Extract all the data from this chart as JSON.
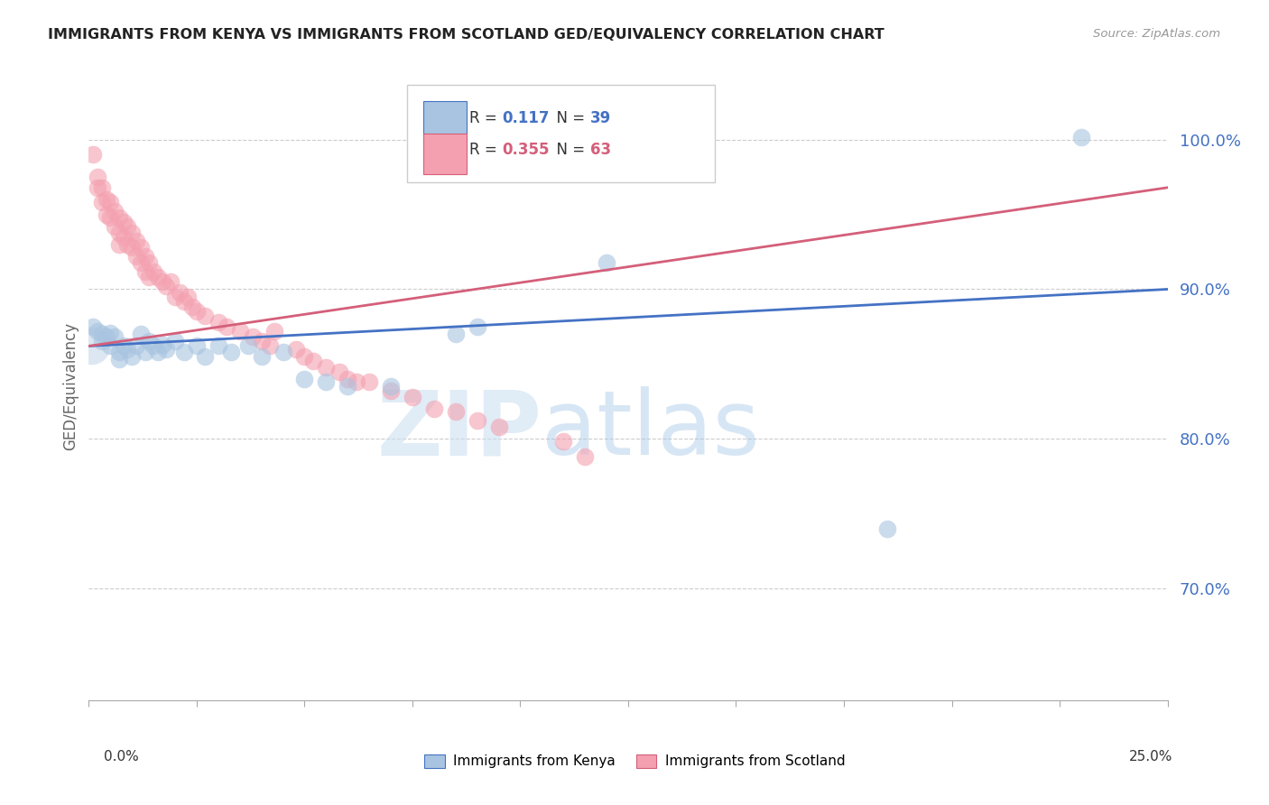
{
  "title": "IMMIGRANTS FROM KENYA VS IMMIGRANTS FROM SCOTLAND GED/EQUIVALENCY CORRELATION CHART",
  "source": "Source: ZipAtlas.com",
  "ylabel": "GED/Equivalency",
  "ytick_labels": [
    "70.0%",
    "80.0%",
    "90.0%",
    "100.0%"
  ],
  "ytick_values": [
    0.7,
    0.8,
    0.9,
    1.0
  ],
  "xlim": [
    0.0,
    0.25
  ],
  "ylim": [
    0.625,
    1.045
  ],
  "kenya_R": 0.117,
  "kenya_N": 39,
  "scotland_R": 0.355,
  "scotland_N": 63,
  "kenya_color": "#a8c4e0",
  "scotland_color": "#f4a0b0",
  "kenya_line_color": "#4472c4",
  "scotland_line_color": "#d45f7a",
  "kenya_scatter": [
    [
      0.001,
      0.875
    ],
    [
      0.002,
      0.872
    ],
    [
      0.003,
      0.87
    ],
    [
      0.003,
      0.865
    ],
    [
      0.004,
      0.868
    ],
    [
      0.005,
      0.871
    ],
    [
      0.005,
      0.862
    ],
    [
      0.006,
      0.868
    ],
    [
      0.007,
      0.858
    ],
    [
      0.007,
      0.853
    ],
    [
      0.008,
      0.862
    ],
    [
      0.009,
      0.86
    ],
    [
      0.01,
      0.855
    ],
    [
      0.011,
      0.862
    ],
    [
      0.012,
      0.87
    ],
    [
      0.013,
      0.858
    ],
    [
      0.014,
      0.865
    ],
    [
      0.015,
      0.862
    ],
    [
      0.016,
      0.858
    ],
    [
      0.017,
      0.863
    ],
    [
      0.018,
      0.86
    ],
    [
      0.02,
      0.865
    ],
    [
      0.022,
      0.858
    ],
    [
      0.025,
      0.862
    ],
    [
      0.027,
      0.855
    ],
    [
      0.03,
      0.862
    ],
    [
      0.033,
      0.858
    ],
    [
      0.037,
      0.862
    ],
    [
      0.04,
      0.855
    ],
    [
      0.045,
      0.858
    ],
    [
      0.05,
      0.84
    ],
    [
      0.055,
      0.838
    ],
    [
      0.06,
      0.835
    ],
    [
      0.07,
      0.835
    ],
    [
      0.085,
      0.87
    ],
    [
      0.09,
      0.875
    ],
    [
      0.12,
      0.918
    ],
    [
      0.185,
      0.74
    ],
    [
      0.23,
      1.002
    ]
  ],
  "scotland_scatter": [
    [
      0.001,
      0.99
    ],
    [
      0.002,
      0.975
    ],
    [
      0.002,
      0.968
    ],
    [
      0.003,
      0.968
    ],
    [
      0.003,
      0.958
    ],
    [
      0.004,
      0.96
    ],
    [
      0.004,
      0.95
    ],
    [
      0.005,
      0.958
    ],
    [
      0.005,
      0.948
    ],
    [
      0.006,
      0.952
    ],
    [
      0.006,
      0.942
    ],
    [
      0.007,
      0.948
    ],
    [
      0.007,
      0.938
    ],
    [
      0.007,
      0.93
    ],
    [
      0.008,
      0.945
    ],
    [
      0.008,
      0.935
    ],
    [
      0.009,
      0.942
    ],
    [
      0.009,
      0.93
    ],
    [
      0.01,
      0.938
    ],
    [
      0.01,
      0.928
    ],
    [
      0.011,
      0.932
    ],
    [
      0.011,
      0.922
    ],
    [
      0.012,
      0.928
    ],
    [
      0.012,
      0.918
    ],
    [
      0.013,
      0.922
    ],
    [
      0.013,
      0.912
    ],
    [
      0.014,
      0.918
    ],
    [
      0.014,
      0.908
    ],
    [
      0.015,
      0.912
    ],
    [
      0.016,
      0.908
    ],
    [
      0.017,
      0.905
    ],
    [
      0.018,
      0.902
    ],
    [
      0.019,
      0.905
    ],
    [
      0.02,
      0.895
    ],
    [
      0.021,
      0.898
    ],
    [
      0.022,
      0.892
    ],
    [
      0.023,
      0.895
    ],
    [
      0.024,
      0.888
    ],
    [
      0.025,
      0.885
    ],
    [
      0.027,
      0.882
    ],
    [
      0.03,
      0.878
    ],
    [
      0.032,
      0.875
    ],
    [
      0.035,
      0.872
    ],
    [
      0.038,
      0.868
    ],
    [
      0.04,
      0.865
    ],
    [
      0.042,
      0.862
    ],
    [
      0.043,
      0.872
    ],
    [
      0.048,
      0.86
    ],
    [
      0.05,
      0.855
    ],
    [
      0.052,
      0.852
    ],
    [
      0.055,
      0.848
    ],
    [
      0.058,
      0.845
    ],
    [
      0.06,
      0.84
    ],
    [
      0.062,
      0.838
    ],
    [
      0.065,
      0.838
    ],
    [
      0.07,
      0.832
    ],
    [
      0.075,
      0.828
    ],
    [
      0.08,
      0.82
    ],
    [
      0.085,
      0.818
    ],
    [
      0.09,
      0.812
    ],
    [
      0.095,
      0.808
    ],
    [
      0.11,
      0.798
    ],
    [
      0.115,
      0.788
    ]
  ],
  "kenya_trendline_x": [
    0.0,
    0.25
  ],
  "kenya_trendline_y": [
    0.862,
    0.9
  ],
  "scotland_trendline_x": [
    0.0,
    0.25
  ],
  "scotland_trendline_y": [
    0.862,
    0.968
  ],
  "watermark_zip": "ZIP",
  "watermark_atlas": "atlas",
  "background_color": "#ffffff",
  "grid_color": "#cccccc"
}
